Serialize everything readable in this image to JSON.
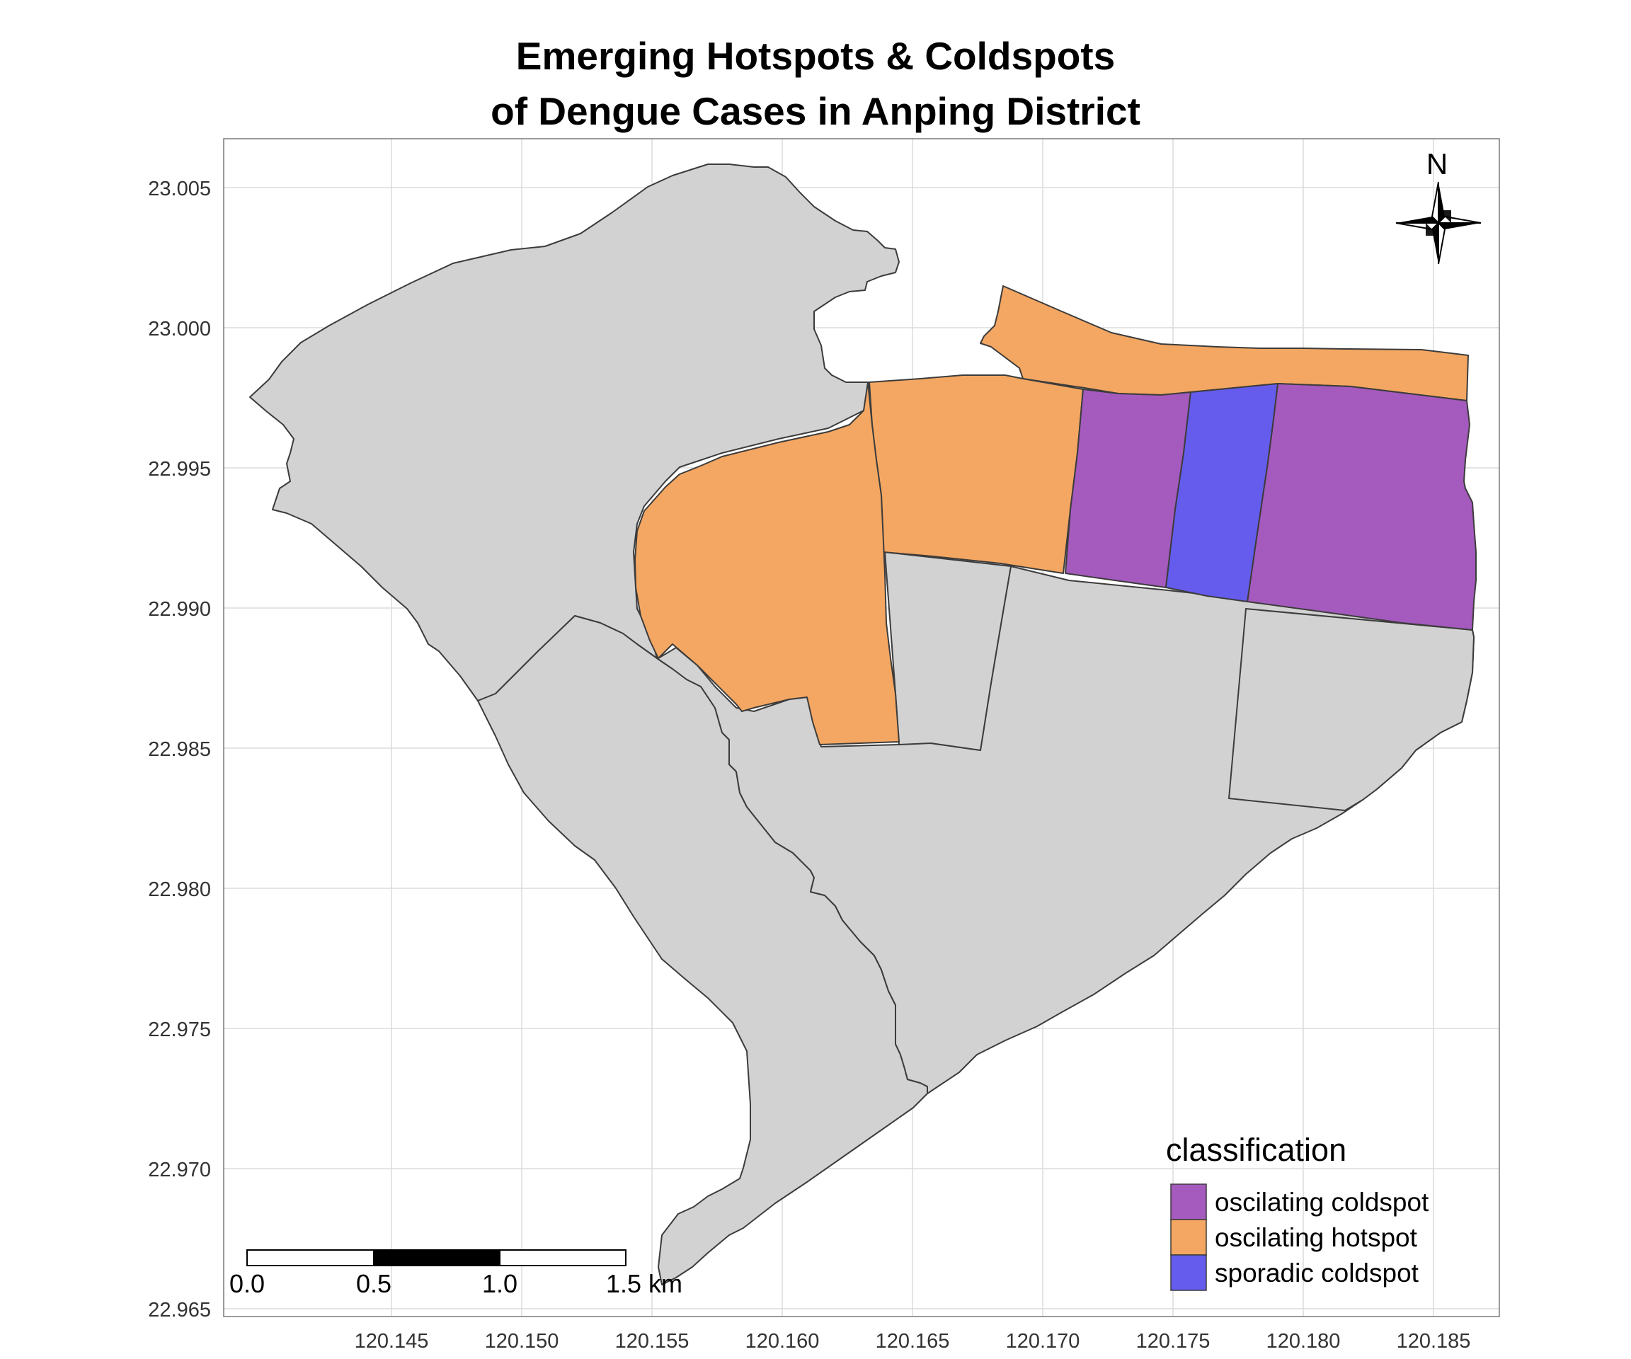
{
  "title": {
    "line1": "Emerging Hotspots & Coldspots",
    "line2": "of Dengue Cases in Anping District"
  },
  "axes": {
    "x_ticks": [
      "120.145",
      "120.150",
      "120.155",
      "120.160",
      "120.165",
      "120.170",
      "120.175",
      "120.180",
      "120.185"
    ],
    "y_ticks": [
      "23.005",
      "23.000",
      "22.995",
      "22.990",
      "22.985",
      "22.980",
      "22.975",
      "22.970",
      "22.965"
    ]
  },
  "legend": {
    "title": "classification",
    "items": [
      {
        "label": "oscilating coldspot",
        "color": "#a55abe"
      },
      {
        "label": "oscilating hotspot",
        "color": "#f4a762"
      },
      {
        "label": "sporadic coldspot",
        "color": "#655ced"
      }
    ]
  },
  "colors": {
    "no_pattern": "#d2d2d2",
    "oscilating_coldspot": "#a55abe",
    "oscilating_hotspot": "#f4a762",
    "sporadic_coldspot": "#655ced",
    "grid": "#dcdcdc"
  },
  "north_arrow": {
    "label": "N",
    "icon": "compass-rose-icon"
  },
  "scale_bar": {
    "labels": [
      "0.0",
      "0.5",
      "1.0",
      "1.5 km"
    ]
  }
}
